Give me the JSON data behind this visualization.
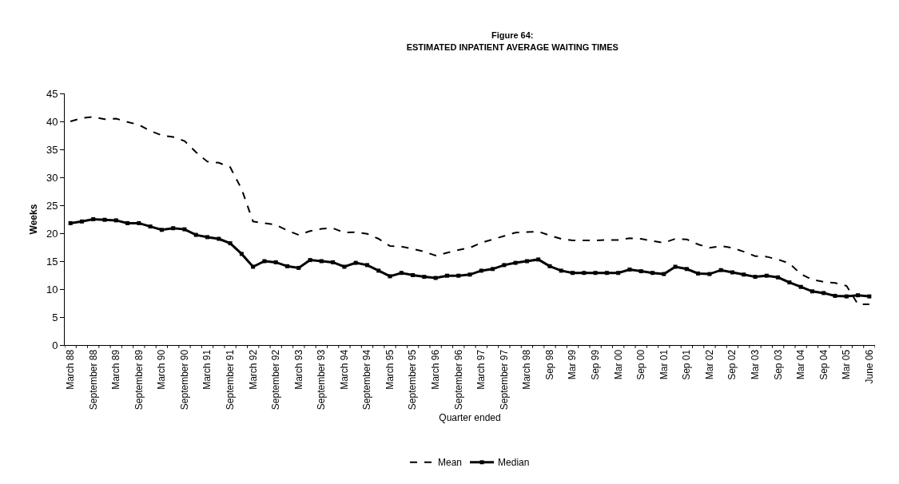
{
  "chart_data": {
    "type": "line",
    "title": "Figure 64:\nESTIMATED INPATIENT AVERAGE WAITING TIMES",
    "xlabel": "Quarter ended",
    "ylabel": "Weeks",
    "categories": [
      "March 88",
      null,
      "September 88",
      null,
      "March 89",
      null,
      "September 89",
      null,
      "March 90",
      null,
      "September 90",
      null,
      "March 91",
      null,
      "September 91",
      null,
      "March 92",
      null,
      "September 92",
      null,
      "March 93",
      null,
      "September 93",
      null,
      "March 94",
      null,
      "September 94",
      null,
      "March 95",
      null,
      "September 95",
      null,
      "March 96",
      null,
      "September 96",
      null,
      "March 97",
      null,
      "September 97",
      null,
      "March 98",
      null,
      "Sep 98",
      null,
      "Mar 99",
      null,
      "Sep 99",
      null,
      "Mar 00",
      null,
      "Sep 00",
      null,
      "Mar 01",
      null,
      "Sep 01",
      null,
      "Mar 02",
      null,
      "Sep 02",
      null,
      "Mar 03",
      null,
      "Sep 03",
      null,
      "Mar 04",
      null,
      "Sep 04",
      null,
      "Mar 05",
      null,
      "June 06"
    ],
    "series": [
      {
        "name": "Mean",
        "color": "#000000",
        "line_style": "dashed",
        "marker": "none",
        "values": [
          40.0,
          40.6,
          40.8,
          40.4,
          40.5,
          39.9,
          39.4,
          38.3,
          37.5,
          37.2,
          36.5,
          34.5,
          32.8,
          32.6,
          31.8,
          27.9,
          22.1,
          21.8,
          21.5,
          20.5,
          19.7,
          20.4,
          20.8,
          20.9,
          20.1,
          20.2,
          19.9,
          19.0,
          17.7,
          17.6,
          17.2,
          16.7,
          16.0,
          16.5,
          17.0,
          17.4,
          18.3,
          18.9,
          19.5,
          20.1,
          20.2,
          20.3,
          19.6,
          19.0,
          18.7,
          18.7,
          18.7,
          18.8,
          18.8,
          19.1,
          19.0,
          18.6,
          18.3,
          19.0,
          18.9,
          18.0,
          17.4,
          17.7,
          17.4,
          16.7,
          15.9,
          15.8,
          15.3,
          14.6,
          12.7,
          11.7,
          11.3,
          11.1,
          10.6,
          7.3,
          7.3
        ]
      },
      {
        "name": "Median",
        "color": "#000000",
        "line_style": "solid",
        "marker": "square",
        "values": [
          21.8,
          22.1,
          22.5,
          22.4,
          22.3,
          21.8,
          21.8,
          21.2,
          20.6,
          20.9,
          20.7,
          19.7,
          19.3,
          19.0,
          18.2,
          16.3,
          14.0,
          15.0,
          14.8,
          14.1,
          13.8,
          15.2,
          15.0,
          14.8,
          14.0,
          14.7,
          14.3,
          13.3,
          12.3,
          12.9,
          12.5,
          12.2,
          12.0,
          12.4,
          12.4,
          12.6,
          13.3,
          13.6,
          14.3,
          14.7,
          15.0,
          15.3,
          14.1,
          13.3,
          12.9,
          12.9,
          12.9,
          12.9,
          12.9,
          13.5,
          13.2,
          12.9,
          12.7,
          14.0,
          13.6,
          12.8,
          12.7,
          13.4,
          13.0,
          12.6,
          12.2,
          12.4,
          12.1,
          11.2,
          10.4,
          9.6,
          9.3,
          8.8,
          8.7,
          8.9,
          8.7
        ]
      }
    ],
    "ylim": [
      0,
      45
    ],
    "yticks": [
      0,
      5,
      10,
      15,
      20,
      25,
      30,
      35,
      40,
      45
    ],
    "grid": false,
    "legend": "bottom"
  }
}
